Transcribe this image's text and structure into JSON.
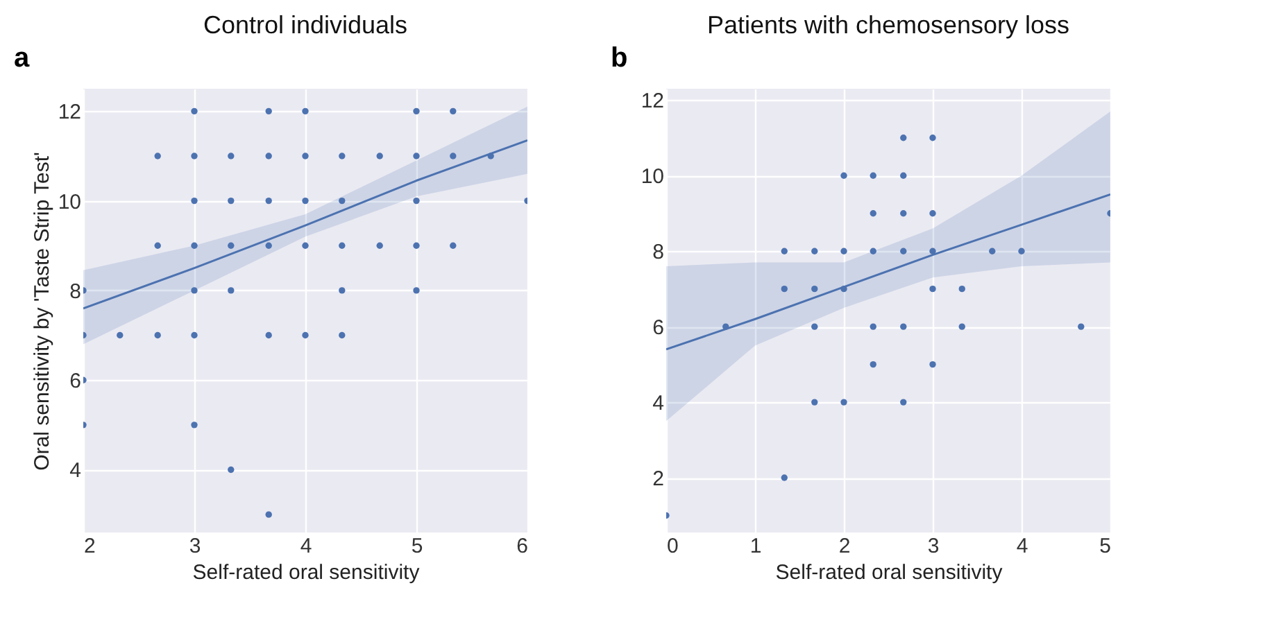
{
  "chart_data": [
    {
      "type": "scatter",
      "title": "Control individuals",
      "xlabel": "Self-rated oral sensitivity",
      "ylabel": "Oral sensitivity by 'Taste Strip Test'",
      "annotations": [
        "a"
      ],
      "xlim": [
        2,
        6
      ],
      "ylim": [
        2.6,
        12.5
      ],
      "xticks": [
        2,
        3,
        4,
        5,
        6
      ],
      "yticks": [
        4,
        6,
        8,
        10,
        12
      ],
      "grid": true,
      "series": [
        {
          "marker": "circle",
          "color": "#4c72b0",
          "x": [
            3,
            3.67,
            4,
            5,
            5.33,
            2.67,
            3,
            3.33,
            3.67,
            4,
            4.33,
            4.67,
            5,
            5.33,
            5.67,
            3,
            3.33,
            3.67,
            4,
            4.33,
            5,
            6,
            2.67,
            3,
            3.33,
            3.67,
            4,
            4.33,
            4.67,
            5,
            5.33,
            2,
            3,
            3.33,
            4.33,
            5,
            2,
            2.33,
            2.67,
            3,
            3.67,
            4,
            4.33,
            2,
            2,
            3,
            3.33,
            3.67
          ],
          "values": [
            12,
            12,
            12,
            12,
            12,
            11,
            11,
            11,
            11,
            11,
            11,
            11,
            11,
            11,
            11,
            10,
            10,
            10,
            10,
            10,
            10,
            10,
            9,
            9,
            9,
            9,
            9,
            9,
            9,
            9,
            9,
            8,
            8,
            8,
            8,
            8,
            7,
            7,
            7,
            7,
            7,
            7,
            7,
            6,
            5,
            5,
            4,
            3
          ]
        },
        {
          "type": "line",
          "marker": "none",
          "color": "#4c72b0",
          "line_style": "solid",
          "x": [
            2,
            3,
            4,
            5,
            6
          ],
          "values": [
            7.6,
            8.5,
            9.45,
            10.45,
            11.35
          ],
          "lower": [
            6.8,
            8.0,
            9.2,
            10.1,
            10.6
          ],
          "upper": [
            8.45,
            9.0,
            9.7,
            10.9,
            12.1
          ]
        }
      ]
    },
    {
      "type": "scatter",
      "title": "Patients with chemosensory loss",
      "xlabel": "Self-rated oral sensitivity",
      "annotations": [
        "b"
      ],
      "xlim": [
        0,
        5
      ],
      "ylim": [
        0.55,
        12.3
      ],
      "xticks": [
        0,
        1,
        2,
        3,
        4,
        5
      ],
      "yticks": [
        2,
        4,
        6,
        8,
        10,
        12
      ],
      "grid": true,
      "series": [
        {
          "marker": "circle",
          "color": "#4c72b0",
          "x": [
            2.67,
            3,
            2,
            2.33,
            2.67,
            2.33,
            2.67,
            3,
            5,
            1.33,
            1.67,
            2,
            2.33,
            2.67,
            3,
            3.67,
            4,
            1.33,
            1.67,
            2,
            3,
            3.33,
            0.67,
            1.67,
            2.33,
            2.67,
            3.33,
            4.67,
            2.33,
            3,
            1.67,
            2,
            2.67,
            1.33,
            0
          ],
          "values": [
            11,
            11,
            10,
            10,
            10,
            9,
            9,
            9,
            9,
            8,
            8,
            8,
            8,
            8,
            8,
            8,
            8,
            7,
            7,
            7,
            7,
            7,
            6,
            6,
            6,
            6,
            6,
            6,
            5,
            5,
            4,
            4,
            4,
            2,
            1
          ]
        },
        {
          "type": "line",
          "marker": "none",
          "color": "#4c72b0",
          "line_style": "solid",
          "x": [
            0,
            1,
            2,
            3,
            4,
            5
          ],
          "values": [
            5.4,
            6.2,
            7.05,
            7.9,
            8.7,
            9.5
          ],
          "lower": [
            3.5,
            5.5,
            6.5,
            7.3,
            7.6,
            7.7
          ],
          "upper": [
            7.6,
            7.7,
            7.7,
            8.6,
            10.0,
            11.7
          ]
        }
      ]
    }
  ]
}
